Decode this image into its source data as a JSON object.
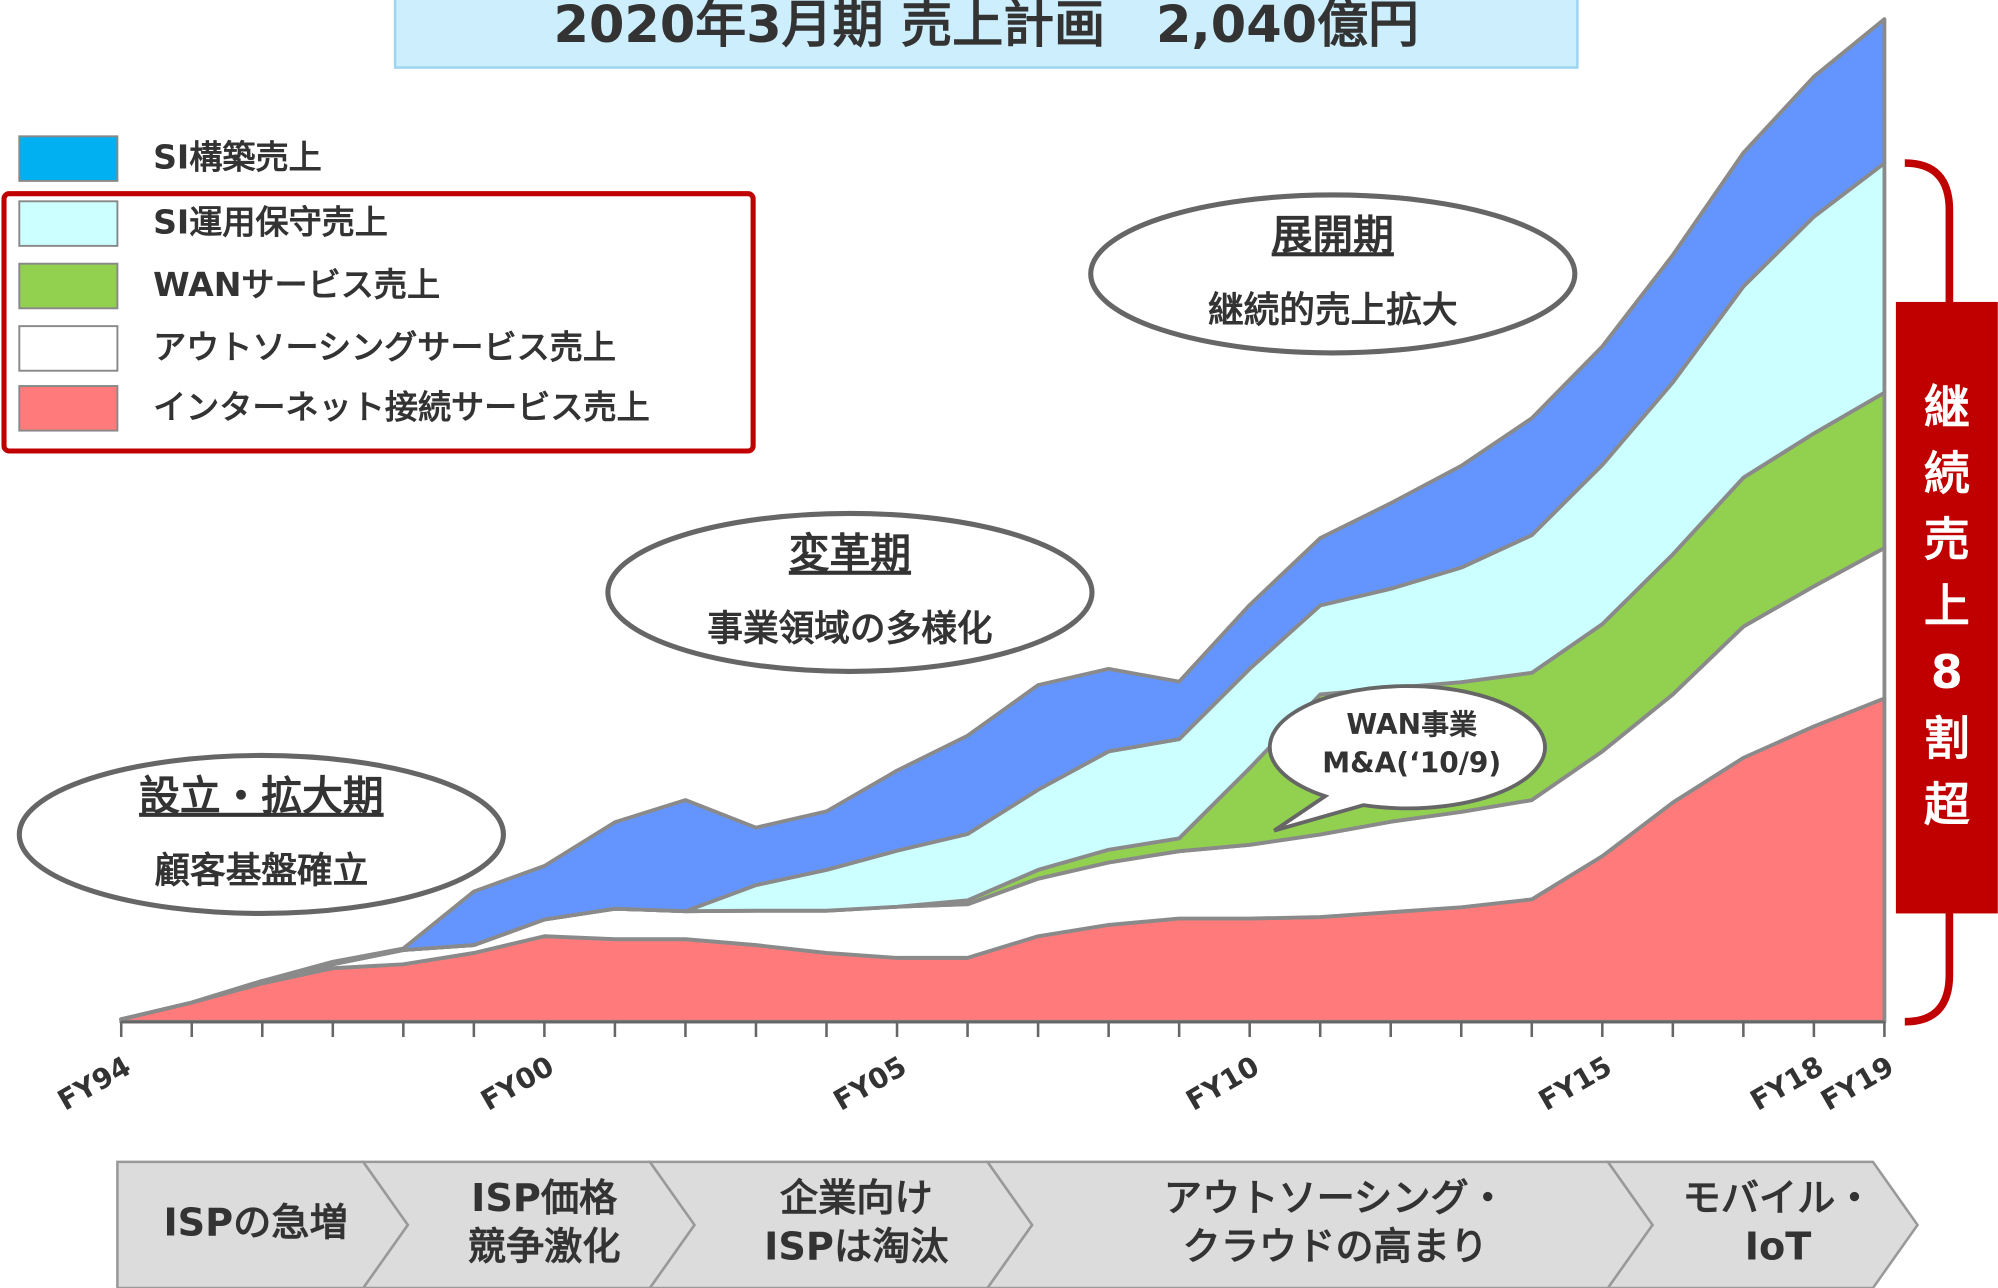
{
  "chart_data": {
    "type": "stacked_area",
    "title": "2020年3月期 売上計画　2,040億円",
    "categories": [
      "FY94",
      null,
      null,
      null,
      null,
      null,
      "FY00",
      null,
      null,
      null,
      null,
      "FY05",
      null,
      null,
      null,
      null,
      "FY10",
      null,
      null,
      null,
      null,
      "FY15",
      null,
      null,
      "FY18",
      "FY19"
    ],
    "ylim": [
      0,
      2040
    ],
    "series": [
      {
        "name": "SI構築売上",
        "color": "#6495ff",
        "values": [
          0,
          0,
          0,
          5,
          3,
          109,
          109,
          176,
          226,
          117,
          119,
          163,
          200,
          213,
          168,
          117,
          130,
          137,
          174,
          207,
          238,
          241,
          259,
          272,
          285,
          293
        ]
      },
      {
        "name": "SI運用保守売上",
        "color": "#ccffff",
        "values": [
          0,
          0,
          0,
          0,
          0,
          0,
          0,
          0,
          0,
          52,
          83,
          114,
          135,
          163,
          200,
          202,
          202,
          181,
          202,
          233,
          280,
          324,
          350,
          389,
          441,
          467
        ]
      },
      {
        "name": "WANサービス売上",
        "color": "#92d050",
        "values": [
          0,
          0,
          0,
          0,
          0,
          0,
          0,
          0,
          0,
          0,
          0,
          0,
          8,
          18,
          26,
          26,
          156,
          285,
          272,
          264,
          259,
          259,
          285,
          303,
          311,
          316
        ]
      },
      {
        "name": "アウトソーシングサービス売上",
        "color": "#ffffff",
        "values": [
          0,
          0,
          5,
          8,
          29,
          16,
          34,
          62,
          57,
          70,
          86,
          104,
          109,
          117,
          127,
          137,
          150,
          168,
          184,
          194,
          202,
          213,
          220,
          267,
          285,
          306
        ]
      },
      {
        "name": "インターネット接続サービス売上",
        "color": "#ff7b7b",
        "values": [
          5,
          39,
          78,
          109,
          117,
          140,
          174,
          168,
          168,
          156,
          140,
          130,
          130,
          174,
          197,
          210,
          210,
          213,
          223,
          233,
          249,
          337,
          446,
          537,
          601,
          658
        ]
      }
    ],
    "phases": [
      {
        "title": "設立・拡大期",
        "subtitle": "顧客基盤確立"
      },
      {
        "title": "変革期",
        "subtitle": "事業領域の多様化"
      },
      {
        "title": "展開期",
        "subtitle": "継続的売上拡大"
      }
    ],
    "callout": [
      "WAN事業",
      "M&A(‘10/9)"
    ],
    "bracket_label": "継続売上8割超",
    "timeline": [
      [
        "ISPの急増"
      ],
      [
        "ISP価格",
        "競争激化"
      ],
      [
        "企業向け",
        "ISPは淘汰"
      ],
      [
        "アウトソーシング・",
        "クラウドの高まり"
      ],
      [
        "モバイル・",
        "IoT"
      ]
    ]
  }
}
